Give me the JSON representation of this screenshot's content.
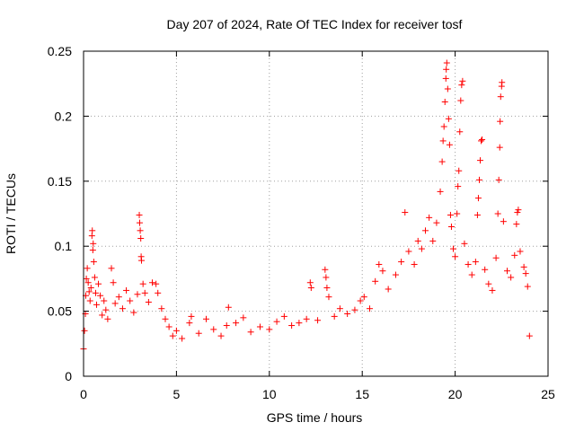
{
  "chart_data": {
    "type": "scatter",
    "title": "Day 207 of 2024, Rate Of TEC Index for receiver tosf",
    "xlabel": "GPS time / hours",
    "ylabel": "ROTI / TECUs",
    "xlim": [
      0,
      25
    ],
    "ylim": [
      0,
      0.25
    ],
    "xticks": [
      0,
      5,
      10,
      15,
      20,
      25
    ],
    "yticks": [
      0,
      0.05,
      0.1,
      0.15,
      0.2,
      0.25
    ],
    "xtick_labels": [
      "0",
      "5",
      "10",
      "15",
      "20",
      "25"
    ],
    "ytick_labels": [
      "0",
      "0.05",
      "0.1",
      "0.15",
      "0.2",
      "0.25"
    ],
    "grid": true,
    "marker": "plus",
    "series": [
      {
        "name": "ROTI",
        "color": "#ff0000",
        "points": [
          [
            0.0,
            0.021
          ],
          [
            0.05,
            0.035
          ],
          [
            0.1,
            0.048
          ],
          [
            0.12,
            0.062
          ],
          [
            0.15,
            0.075
          ],
          [
            0.2,
            0.083
          ],
          [
            0.25,
            0.072
          ],
          [
            0.3,
            0.065
          ],
          [
            0.35,
            0.058
          ],
          [
            0.4,
            0.068
          ],
          [
            0.45,
            0.108
          ],
          [
            0.47,
            0.112
          ],
          [
            0.5,
            0.097
          ],
          [
            0.52,
            0.102
          ],
          [
            0.55,
            0.088
          ],
          [
            0.6,
            0.076
          ],
          [
            0.65,
            0.064
          ],
          [
            0.7,
            0.055
          ],
          [
            0.8,
            0.071
          ],
          [
            0.9,
            0.062
          ],
          [
            1.0,
            0.047
          ],
          [
            1.1,
            0.058
          ],
          [
            1.2,
            0.051
          ],
          [
            1.3,
            0.044
          ],
          [
            1.5,
            0.083
          ],
          [
            1.6,
            0.072
          ],
          [
            1.7,
            0.056
          ],
          [
            1.9,
            0.061
          ],
          [
            2.1,
            0.052
          ],
          [
            2.3,
            0.066
          ],
          [
            2.5,
            0.058
          ],
          [
            2.7,
            0.049
          ],
          [
            2.9,
            0.063
          ],
          [
            3.0,
            0.124
          ],
          [
            3.02,
            0.118
          ],
          [
            3.05,
            0.112
          ],
          [
            3.08,
            0.106
          ],
          [
            3.1,
            0.092
          ],
          [
            3.12,
            0.089
          ],
          [
            3.2,
            0.071
          ],
          [
            3.3,
            0.064
          ],
          [
            3.5,
            0.057
          ],
          [
            3.7,
            0.072
          ],
          [
            3.9,
            0.071
          ],
          [
            4.0,
            0.064
          ],
          [
            4.2,
            0.052
          ],
          [
            4.4,
            0.044
          ],
          [
            4.6,
            0.038
          ],
          [
            4.8,
            0.031
          ],
          [
            5.0,
            0.035
          ],
          [
            5.3,
            0.029
          ],
          [
            5.7,
            0.041
          ],
          [
            5.8,
            0.046
          ],
          [
            6.2,
            0.033
          ],
          [
            6.6,
            0.044
          ],
          [
            7.0,
            0.036
          ],
          [
            7.4,
            0.031
          ],
          [
            7.7,
            0.039
          ],
          [
            7.8,
            0.053
          ],
          [
            8.2,
            0.041
          ],
          [
            8.6,
            0.045
          ],
          [
            9.0,
            0.034
          ],
          [
            9.5,
            0.038
          ],
          [
            10.0,
            0.036
          ],
          [
            10.4,
            0.042
          ],
          [
            10.8,
            0.046
          ],
          [
            11.2,
            0.039
          ],
          [
            11.6,
            0.041
          ],
          [
            12.0,
            0.044
          ],
          [
            12.2,
            0.072
          ],
          [
            12.25,
            0.068
          ],
          [
            12.6,
            0.043
          ],
          [
            13.0,
            0.082
          ],
          [
            13.05,
            0.076
          ],
          [
            13.1,
            0.068
          ],
          [
            13.2,
            0.061
          ],
          [
            13.5,
            0.046
          ],
          [
            13.8,
            0.052
          ],
          [
            14.2,
            0.048
          ],
          [
            14.6,
            0.051
          ],
          [
            14.9,
            0.058
          ],
          [
            15.1,
            0.061
          ],
          [
            15.4,
            0.052
          ],
          [
            15.7,
            0.073
          ],
          [
            15.9,
            0.086
          ],
          [
            16.1,
            0.081
          ],
          [
            16.4,
            0.067
          ],
          [
            16.8,
            0.078
          ],
          [
            17.1,
            0.088
          ],
          [
            17.3,
            0.126
          ],
          [
            17.5,
            0.096
          ],
          [
            17.8,
            0.086
          ],
          [
            18.0,
            0.104
          ],
          [
            18.2,
            0.098
          ],
          [
            18.4,
            0.112
          ],
          [
            18.6,
            0.122
          ],
          [
            18.8,
            0.104
          ],
          [
            19.0,
            0.118
          ],
          [
            19.2,
            0.142
          ],
          [
            19.3,
            0.165
          ],
          [
            19.35,
            0.181
          ],
          [
            19.4,
            0.192
          ],
          [
            19.45,
            0.211
          ],
          [
            19.5,
            0.229
          ],
          [
            19.52,
            0.236
          ],
          [
            19.55,
            0.241
          ],
          [
            19.6,
            0.221
          ],
          [
            19.65,
            0.198
          ],
          [
            19.7,
            0.178
          ],
          [
            19.75,
            0.124
          ],
          [
            19.8,
            0.115
          ],
          [
            19.9,
            0.098
          ],
          [
            20.0,
            0.092
          ],
          [
            20.1,
            0.125
          ],
          [
            20.15,
            0.146
          ],
          [
            20.2,
            0.158
          ],
          [
            20.25,
            0.188
          ],
          [
            20.3,
            0.212
          ],
          [
            20.35,
            0.224
          ],
          [
            20.4,
            0.227
          ],
          [
            20.5,
            0.102
          ],
          [
            20.7,
            0.086
          ],
          [
            20.9,
            0.078
          ],
          [
            21.1,
            0.088
          ],
          [
            21.2,
            0.124
          ],
          [
            21.25,
            0.137
          ],
          [
            21.3,
            0.151
          ],
          [
            21.35,
            0.166
          ],
          [
            21.4,
            0.181
          ],
          [
            21.45,
            0.182
          ],
          [
            21.6,
            0.082
          ],
          [
            21.8,
            0.071
          ],
          [
            22.0,
            0.066
          ],
          [
            22.2,
            0.091
          ],
          [
            22.3,
            0.125
          ],
          [
            22.35,
            0.151
          ],
          [
            22.4,
            0.176
          ],
          [
            22.42,
            0.196
          ],
          [
            22.45,
            0.215
          ],
          [
            22.5,
            0.223
          ],
          [
            22.52,
            0.226
          ],
          [
            22.6,
            0.119
          ],
          [
            22.8,
            0.081
          ],
          [
            23.0,
            0.076
          ],
          [
            23.2,
            0.093
          ],
          [
            23.3,
            0.117
          ],
          [
            23.35,
            0.126
          ],
          [
            23.4,
            0.128
          ],
          [
            23.5,
            0.096
          ],
          [
            23.7,
            0.084
          ],
          [
            23.8,
            0.079
          ],
          [
            23.9,
            0.069
          ],
          [
            24.0,
            0.031
          ]
        ]
      }
    ]
  }
}
